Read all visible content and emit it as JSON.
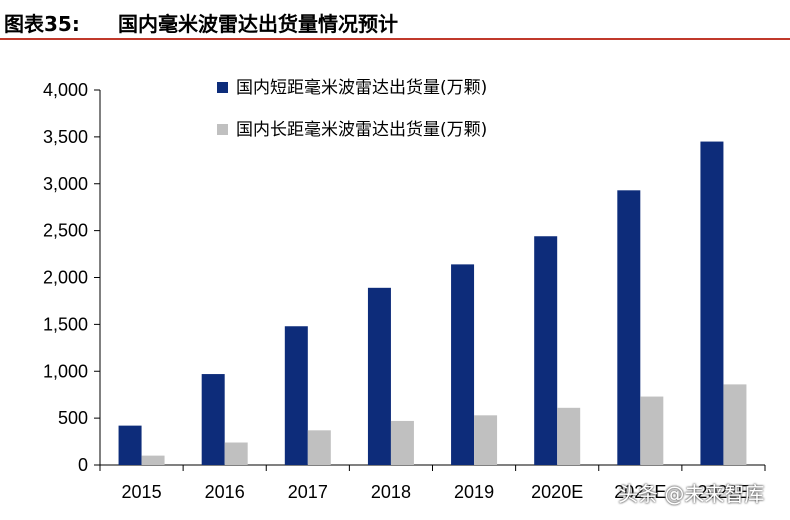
{
  "header": {
    "figure_label": "图表35:",
    "title": "国内毫米波雷达出货量情况预计"
  },
  "chart_data": {
    "type": "bar",
    "categories": [
      "2015",
      "2016",
      "2017",
      "2018",
      "2019",
      "2020E",
      "2021E",
      "2022E"
    ],
    "series": [
      {
        "name": "国内短距毫米波雷达出货量(万颗)",
        "color": "#0d2c7a",
        "values": [
          420,
          970,
          1480,
          1890,
          2140,
          2440,
          2930,
          3450
        ]
      },
      {
        "name": "国内长距毫米波雷达出货量(万颗)",
        "color": "#c0c0c0",
        "values": [
          100,
          240,
          370,
          470,
          530,
          610,
          730,
          860
        ]
      }
    ],
    "ylim": [
      0,
      4000
    ],
    "yticks": [
      0,
      500,
      1000,
      1500,
      2000,
      2500,
      3000,
      3500,
      4000
    ],
    "ytick_labels": [
      "0",
      "500",
      "1,000",
      "1,500",
      "2,000",
      "2,500",
      "3,000",
      "3,500",
      "4,000"
    ],
    "legend_position": "top-left",
    "grid": false
  },
  "watermark": "头条 @未来智库"
}
